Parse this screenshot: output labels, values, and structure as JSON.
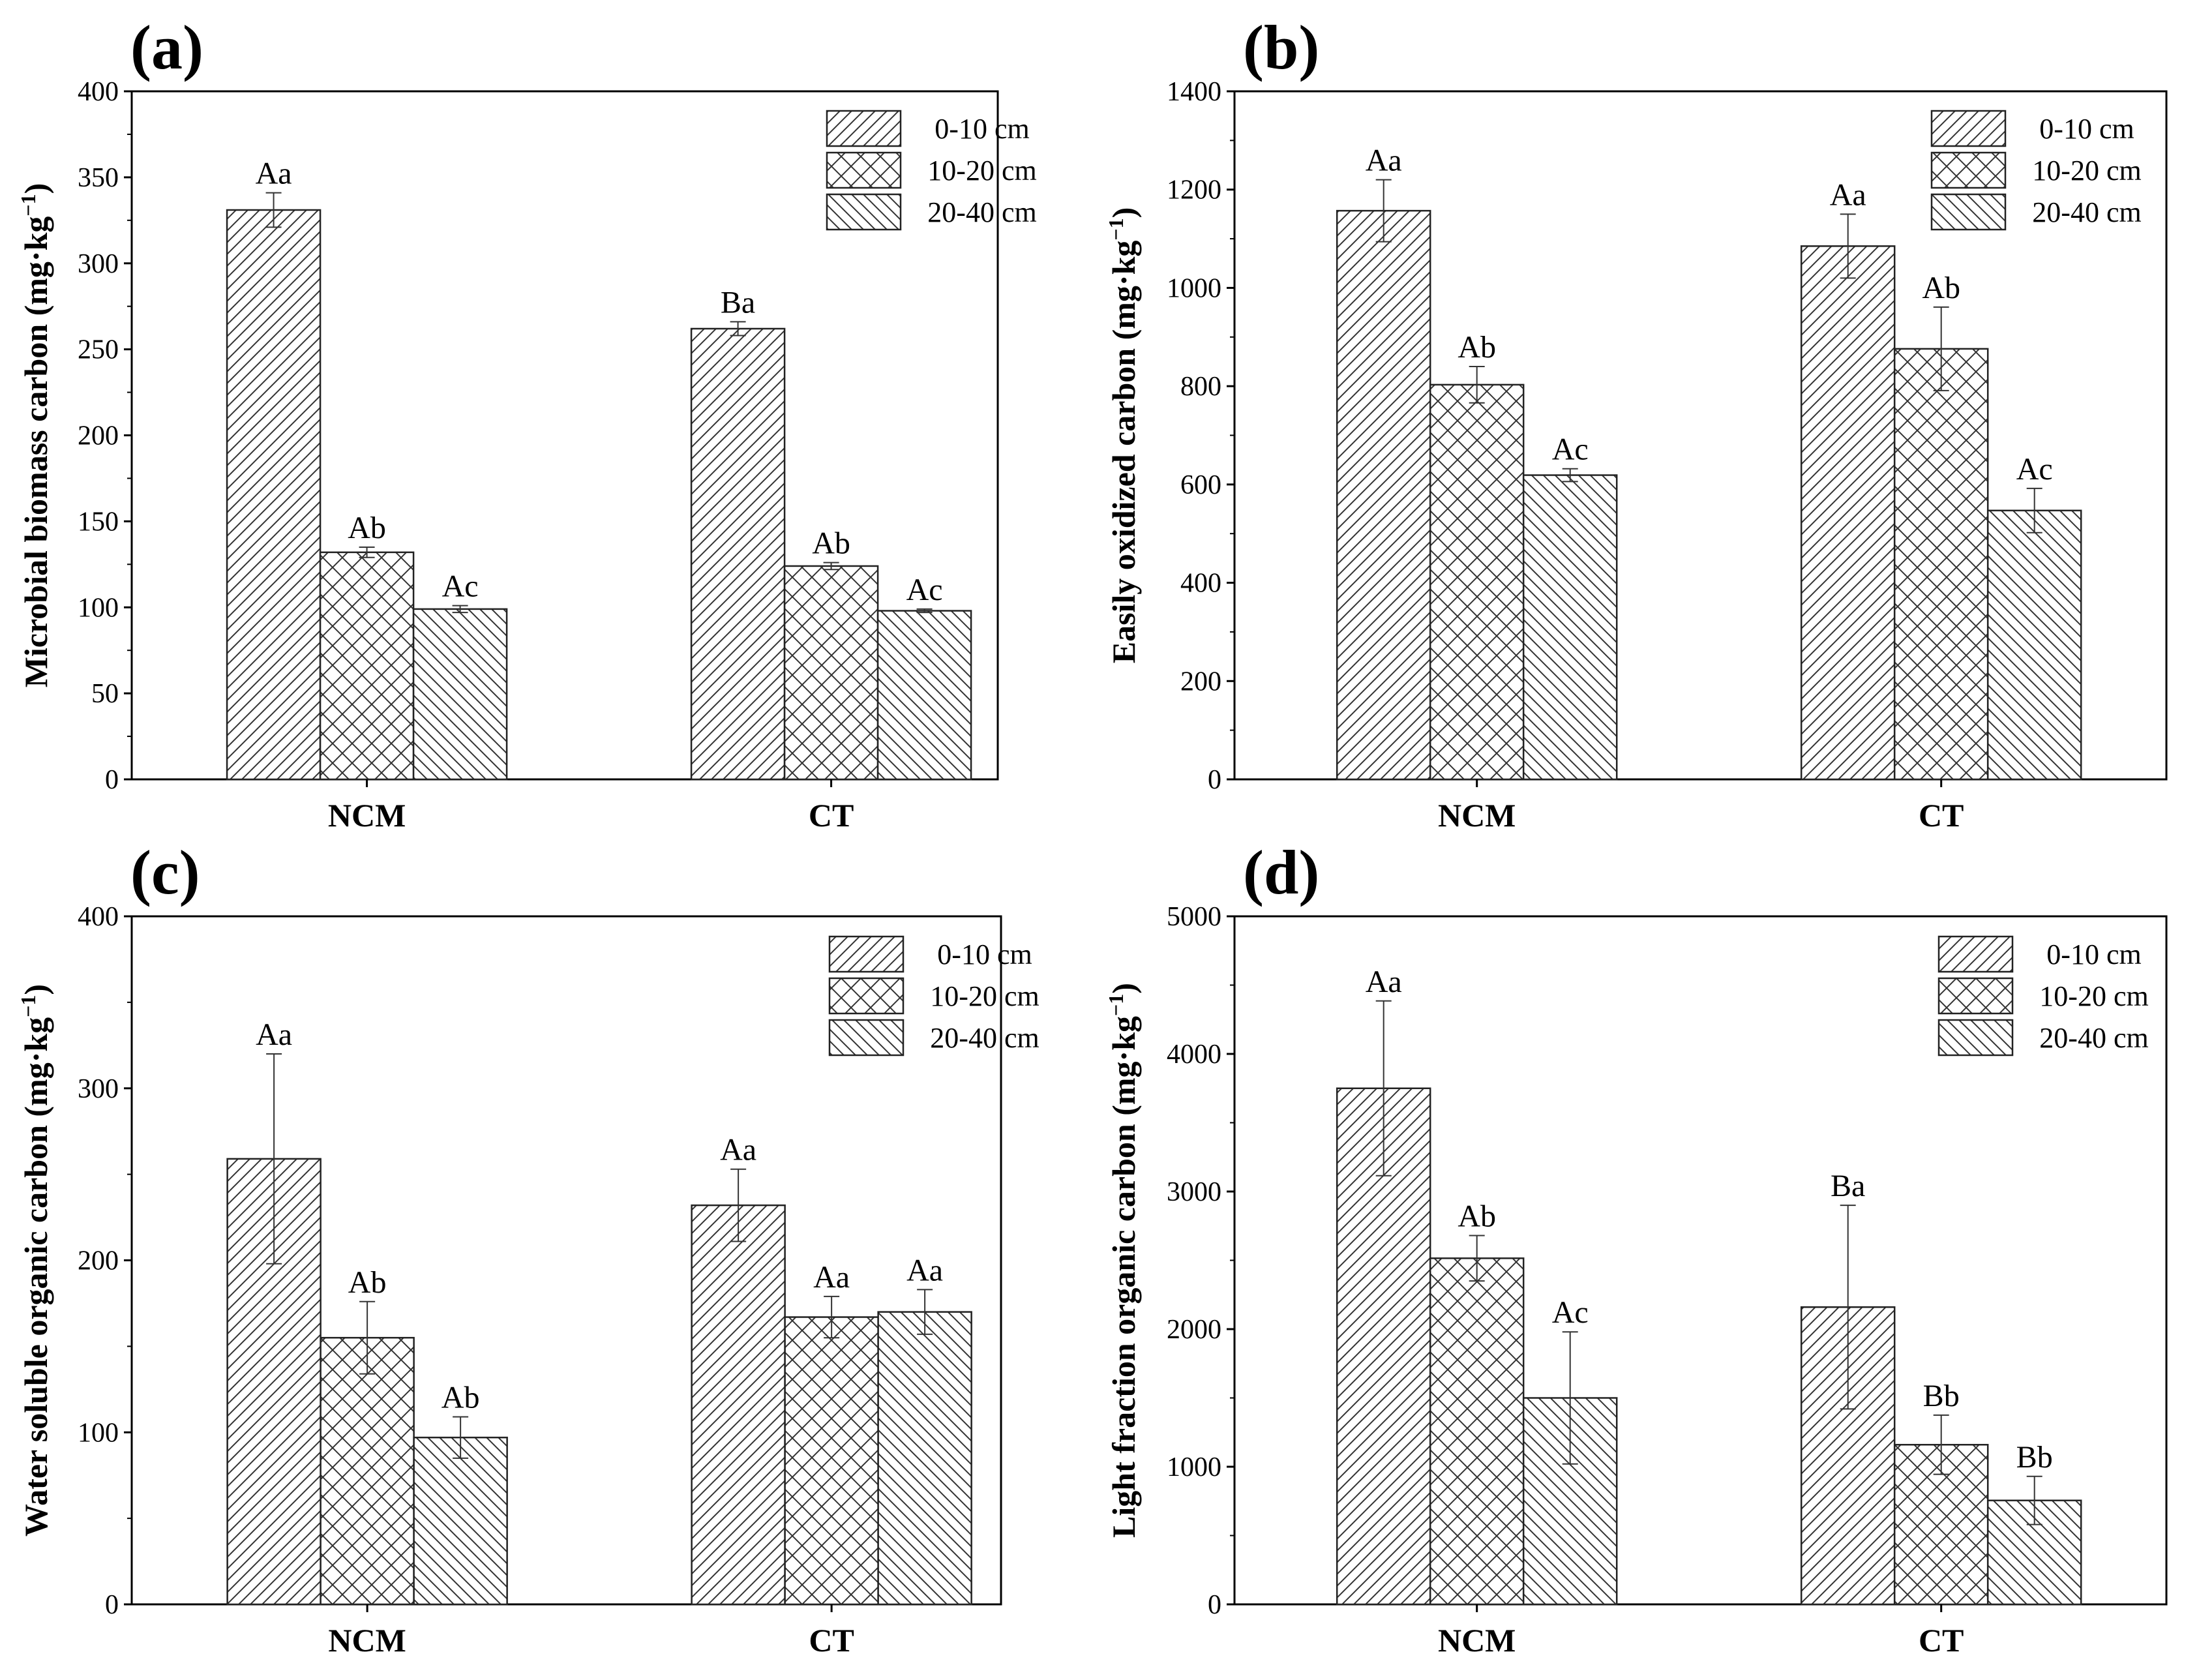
{
  "figure": {
    "series_names": [
      "0-10 cm",
      "10-20 cm",
      "20-40 cm"
    ],
    "groups": [
      "NCM",
      "CT"
    ],
    "patterns": [
      "diag-right",
      "crosshatch",
      "diag-left"
    ],
    "colors": {
      "stroke": "#222222",
      "fill": "#ffffff",
      "axis": "#000000"
    }
  },
  "chart_data": [
    {
      "type": "bar",
      "panel": "(a)",
      "ylabel": "Microbial biomass carbon",
      "unit_main": "(mg·kg",
      "unit_sup": "−1",
      "unit_close": ")",
      "categories": [
        "NCM",
        "CT"
      ],
      "ylim": [
        0,
        400
      ],
      "yticks": [
        0,
        50,
        100,
        150,
        200,
        250,
        300,
        350,
        400
      ],
      "series": [
        {
          "name": "0-10 cm",
          "values": [
            331,
            262
          ],
          "errors": [
            10,
            4
          ],
          "labels": [
            "Aa",
            "Ba"
          ]
        },
        {
          "name": "10-20 cm",
          "values": [
            132,
            124
          ],
          "errors": [
            3,
            2
          ],
          "labels": [
            "Ab",
            "Ab"
          ]
        },
        {
          "name": "20-40 cm",
          "values": [
            99,
            98
          ],
          "errors": [
            2,
            1
          ],
          "labels": [
            "Ac",
            "Ac"
          ]
        }
      ]
    },
    {
      "type": "bar",
      "panel": "(b)",
      "ylabel": "Easily oxidized carbon",
      "unit_main": "(mg·kg",
      "unit_sup": "−1",
      "unit_close": ")",
      "categories": [
        "NCM",
        "CT"
      ],
      "ylim": [
        0,
        1400
      ],
      "yticks": [
        0,
        200,
        400,
        600,
        800,
        1000,
        1200,
        1400
      ],
      "series": [
        {
          "name": "0-10 cm",
          "values": [
            1157,
            1085
          ],
          "errors": [
            63,
            65
          ],
          "labels": [
            "Aa",
            "Aa"
          ]
        },
        {
          "name": "10-20 cm",
          "values": [
            803,
            876
          ],
          "errors": [
            37,
            85
          ],
          "labels": [
            "Ab",
            "Ab"
          ]
        },
        {
          "name": "20-40 cm",
          "values": [
            619,
            547
          ],
          "errors": [
            13,
            45
          ],
          "labels": [
            "Ac",
            "Ac"
          ]
        }
      ]
    },
    {
      "type": "bar",
      "panel": "(c)",
      "ylabel": "Water soluble organic carbon",
      "unit_main": "(mg·kg",
      "unit_sup": "−1",
      "unit_close": ")",
      "categories": [
        "NCM",
        "CT"
      ],
      "ylim": [
        0,
        400
      ],
      "yticks": [
        0,
        100,
        200,
        300,
        400
      ],
      "series": [
        {
          "name": "0-10 cm",
          "values": [
            259,
            232
          ],
          "errors": [
            61,
            21
          ],
          "labels": [
            "Aa",
            "Aa"
          ]
        },
        {
          "name": "10-20 cm",
          "values": [
            155,
            167
          ],
          "errors": [
            21,
            12
          ],
          "labels": [
            "Ab",
            "Aa"
          ]
        },
        {
          "name": "20-40 cm",
          "values": [
            97,
            170
          ],
          "errors": [
            12,
            13
          ],
          "labels": [
            "Ab",
            "Aa"
          ]
        }
      ]
    },
    {
      "type": "bar",
      "panel": "(d)",
      "ylabel": "Light fraction organic carbon",
      "unit_main": "(mg·kg",
      "unit_sup": "−1",
      "unit_close": ")",
      "categories": [
        "NCM",
        "CT"
      ],
      "ylim": [
        0,
        5000
      ],
      "yticks": [
        0,
        1000,
        2000,
        3000,
        4000,
        5000
      ],
      "series": [
        {
          "name": "0-10 cm",
          "values": [
            3750,
            2160
          ],
          "errors": [
            635,
            740
          ],
          "labels": [
            "Aa",
            "Ba"
          ]
        },
        {
          "name": "10-20 cm",
          "values": [
            2515,
            1160
          ],
          "errors": [
            165,
            215
          ],
          "labels": [
            "Ab",
            "Bb"
          ]
        },
        {
          "name": "20-40 cm",
          "values": [
            1500,
            755
          ],
          "errors": [
            480,
            175
          ],
          "labels": [
            "Ac",
            "Bb"
          ]
        }
      ]
    }
  ]
}
